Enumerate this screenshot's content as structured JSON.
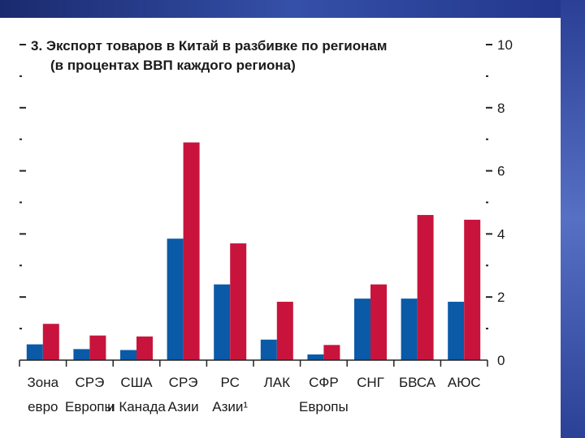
{
  "chart_data": {
    "type": "bar",
    "title": "3. Экспорт товаров в Китай в разбивке по регионам",
    "subtitle": "(в процентах ВВП каждого региона)",
    "categories": [
      [
        "Зона",
        "евро"
      ],
      [
        "СРЭ",
        "Европы"
      ],
      [
        "США",
        "и Канада"
      ],
      [
        "СРЭ",
        "Азии"
      ],
      [
        "РС",
        "Азии¹"
      ],
      [
        "ЛАК",
        ""
      ],
      [
        "СФР",
        "Европы"
      ],
      [
        "СНГ",
        ""
      ],
      [
        "БВСА",
        ""
      ],
      [
        "АЮС",
        ""
      ]
    ],
    "series": [
      {
        "name": "series-1",
        "color": "#0a5aa8",
        "values": [
          0.5,
          0.35,
          0.32,
          3.85,
          2.4,
          0.65,
          0.18,
          1.95,
          1.95,
          1.85
        ]
      },
      {
        "name": "series-2",
        "color": "#c8143c",
        "values": [
          1.15,
          0.78,
          0.75,
          6.9,
          3.7,
          1.85,
          0.48,
          2.4,
          4.6,
          4.45
        ]
      }
    ],
    "ylim": [
      0,
      10
    ],
    "yticks": [
      0,
      2,
      4,
      6,
      8,
      10
    ],
    "xlabel": "",
    "ylabel": "",
    "grid": false
  }
}
